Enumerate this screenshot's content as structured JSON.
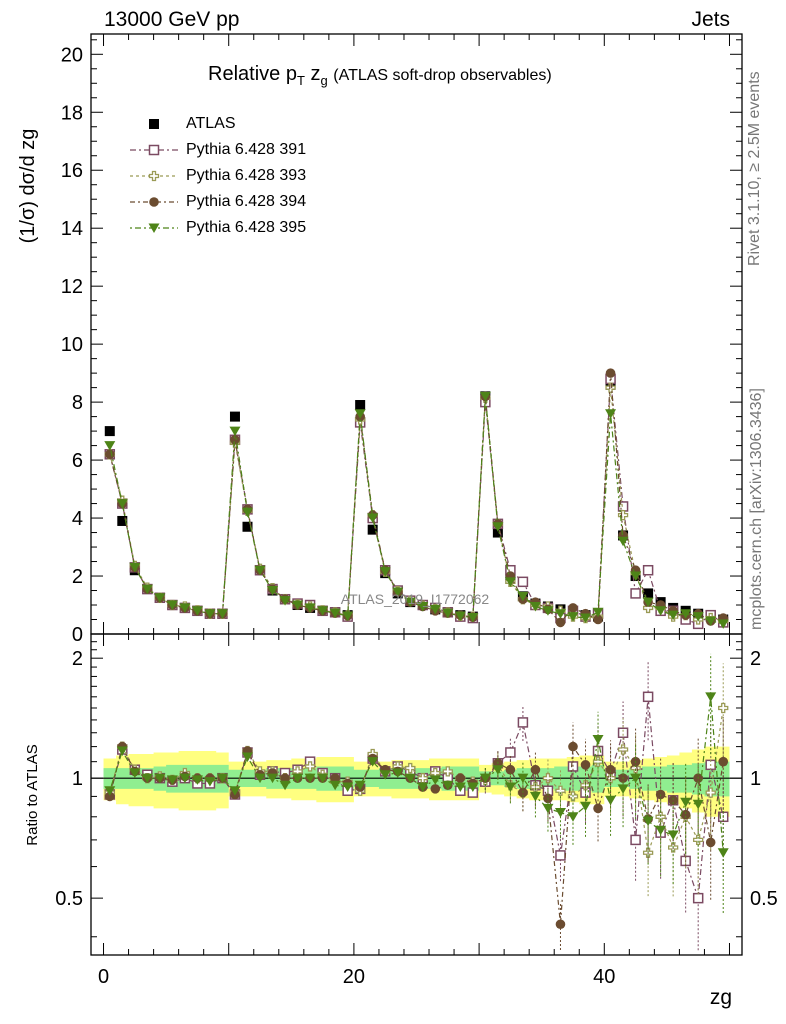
{
  "header": {
    "left": "13000 GeV pp",
    "right": "Jets"
  },
  "side_labels": {
    "events": "Rivet 3.1.10, ≥ 2.5M events",
    "source": "mcplots.cern.ch [arXiv:1306.3436]"
  },
  "watermark": "ATLAS_2019_I1772062",
  "chart_data": [
    {
      "type": "scatter",
      "title": "Relative pT zg (ATLAS soft-drop observables)",
      "ylabel": "(1/σ) dσ/d zg",
      "xlim": [
        -1,
        51
      ],
      "ylim": [
        0,
        20.7
      ],
      "yticks": [
        0,
        2,
        4,
        6,
        8,
        10,
        12,
        14,
        16,
        18,
        20
      ],
      "legend_position": "top-left",
      "x": [
        0.5,
        1.5,
        2.5,
        3.5,
        4.5,
        5.5,
        6.5,
        7.5,
        8.5,
        9.5,
        10.5,
        11.5,
        12.5,
        13.5,
        14.5,
        15.5,
        16.5,
        17.5,
        18.5,
        19.5,
        20.5,
        21.5,
        22.5,
        23.5,
        24.5,
        25.5,
        26.5,
        27.5,
        28.5,
        29.5,
        30.5,
        31.5,
        32.5,
        33.5,
        34.5,
        35.5,
        36.5,
        37.5,
        38.5,
        39.5,
        40.5,
        41.5,
        42.5,
        43.5,
        44.5,
        45.5,
        46.5,
        47.5,
        48.5,
        49.5
      ],
      "series": [
        {
          "name": "ATLAS",
          "color": "#000000",
          "marker": "square-filled",
          "values": [
            7.0,
            3.9,
            2.2,
            1.55,
            1.25,
            1.0,
            0.9,
            0.8,
            0.7,
            0.7,
            7.5,
            3.7,
            2.2,
            1.5,
            1.2,
            1.0,
            0.9,
            0.8,
            0.75,
            0.65,
            7.9,
            3.6,
            2.1,
            1.4,
            1.1,
            1.0,
            0.85,
            0.75,
            0.65,
            0.6,
            8.2,
            3.5,
            1.9,
            1.3,
            1.05,
            0.95,
            0.85,
            0.75,
            0.65,
            0.6,
            8.6,
            3.4,
            2.0,
            1.4,
            1.1,
            0.9,
            0.8,
            0.7,
            0.6,
            0.5
          ]
        },
        {
          "name": "Pythia 6.428 391",
          "color": "#7b4a62",
          "marker": "square-open",
          "values": [
            6.2,
            4.5,
            2.3,
            1.55,
            1.25,
            1.0,
            0.9,
            0.8,
            0.7,
            0.7,
            6.7,
            4.3,
            2.2,
            1.55,
            1.2,
            1.05,
            1.0,
            0.8,
            0.75,
            0.6,
            7.3,
            4.0,
            2.2,
            1.5,
            1.15,
            1.0,
            0.9,
            0.75,
            0.6,
            0.55,
            8.0,
            3.8,
            2.2,
            1.8,
            1.0,
            0.9,
            0.55,
            0.8,
            0.6,
            0.7,
            8.8,
            4.4,
            1.4,
            2.2,
            0.8,
            0.8,
            0.5,
            0.35,
            0.65,
            0.4
          ]
        },
        {
          "name": "Pythia 6.428 393",
          "color": "#9a9a55",
          "marker": "cross-open",
          "values": [
            6.2,
            4.6,
            2.35,
            1.6,
            1.25,
            1.0,
            0.95,
            0.82,
            0.7,
            0.7,
            6.6,
            4.25,
            2.25,
            1.58,
            1.2,
            1.02,
            0.95,
            0.82,
            0.74,
            0.64,
            7.4,
            4.1,
            2.15,
            1.48,
            1.14,
            0.98,
            0.86,
            0.74,
            0.63,
            0.6,
            8.15,
            3.8,
            1.8,
            1.2,
            1.0,
            0.95,
            0.8,
            0.6,
            0.55,
            0.6,
            8.5,
            4.1,
            2.1,
            0.9,
            0.9,
            0.6,
            0.65,
            0.5,
            0.55,
            0.45
          ]
        },
        {
          "name": "Pythia 6.428 394",
          "color": "#6b4c30",
          "marker": "circle-filled",
          "values": [
            6.2,
            4.5,
            2.3,
            1.55,
            1.25,
            1.0,
            0.9,
            0.8,
            0.7,
            0.7,
            6.7,
            4.3,
            2.2,
            1.55,
            1.2,
            1.0,
            0.9,
            0.8,
            0.72,
            0.63,
            7.5,
            4.1,
            2.2,
            1.45,
            1.1,
            0.95,
            0.8,
            0.72,
            0.65,
            0.58,
            8.2,
            3.8,
            2.0,
            1.2,
            1.1,
            0.85,
            0.4,
            0.9,
            0.7,
            0.5,
            9.0,
            3.4,
            2.2,
            1.1,
            1.0,
            0.8,
            0.65,
            0.7,
            0.45,
            0.55
          ]
        },
        {
          "name": "Pythia 6.428 395",
          "color": "#4e8418",
          "marker": "triangle-down-filled",
          "values": [
            6.5,
            4.5,
            2.3,
            1.55,
            1.25,
            1.0,
            0.9,
            0.8,
            0.7,
            0.7,
            7.0,
            4.2,
            2.2,
            1.5,
            1.15,
            1.0,
            0.9,
            0.8,
            0.72,
            0.62,
            7.6,
            4.0,
            2.15,
            1.45,
            1.1,
            0.95,
            0.85,
            0.72,
            0.62,
            0.57,
            8.2,
            3.7,
            1.8,
            1.3,
            0.95,
            0.8,
            0.7,
            0.6,
            0.55,
            0.75,
            7.6,
            3.2,
            2.0,
            1.1,
            0.8,
            0.65,
            0.7,
            0.6,
            0.45,
            0.35
          ]
        }
      ]
    },
    {
      "type": "scatter",
      "ylabel": "Ratio to ATLAS",
      "xlabel": "zg",
      "xlim": [
        -1,
        51
      ],
      "ylim": [
        0.36,
        2.3
      ],
      "yticks": [
        0.5,
        1,
        2
      ],
      "xticks": [
        0,
        20,
        40
      ],
      "reference": 1,
      "band_inner": [
        0.06,
        0.06,
        0.06,
        0.06,
        0.07,
        0.08,
        0.08,
        0.08,
        0.08,
        0.08,
        0.05,
        0.05,
        0.05,
        0.06,
        0.06,
        0.06,
        0.06,
        0.07,
        0.07,
        0.07,
        0.05,
        0.05,
        0.06,
        0.06,
        0.06,
        0.06,
        0.06,
        0.07,
        0.07,
        0.07,
        0.04,
        0.04,
        0.05,
        0.06,
        0.06,
        0.06,
        0.07,
        0.07,
        0.07,
        0.08,
        0.05,
        0.05,
        0.06,
        0.07,
        0.07,
        0.08,
        0.08,
        0.09,
        0.1,
        0.1
      ],
      "band_outer": [
        0.12,
        0.14,
        0.15,
        0.15,
        0.16,
        0.16,
        0.17,
        0.17,
        0.17,
        0.16,
        0.1,
        0.1,
        0.1,
        0.11,
        0.11,
        0.12,
        0.12,
        0.13,
        0.13,
        0.13,
        0.1,
        0.1,
        0.1,
        0.11,
        0.11,
        0.11,
        0.12,
        0.12,
        0.12,
        0.12,
        0.08,
        0.09,
        0.1,
        0.11,
        0.12,
        0.12,
        0.12,
        0.13,
        0.14,
        0.14,
        0.1,
        0.1,
        0.11,
        0.12,
        0.13,
        0.14,
        0.16,
        0.18,
        0.2,
        0.2
      ],
      "series": [
        {
          "name": "Pythia 6.428 391",
          "color": "#7b4a62",
          "marker": "square-open",
          "values": [
            0.91,
            1.18,
            1.05,
            1.02,
            1.0,
            0.98,
            1.0,
            0.97,
            0.97,
            1.0,
            0.91,
            1.16,
            1.02,
            1.04,
            1.03,
            1.05,
            1.1,
            1.03,
            1.0,
            0.93,
            0.94,
            1.12,
            1.04,
            1.07,
            1.04,
            1.0,
            1.04,
            1.0,
            0.93,
            0.92,
            0.98,
            1.09,
            1.16,
            1.38,
            0.96,
            0.93,
            0.64,
            1.07,
            0.92,
            1.17,
            1.03,
            1.3,
            0.7,
            1.6,
            0.73,
            0.88,
            0.62,
            0.5,
            1.08,
            0.8
          ]
        },
        {
          "name": "Pythia 6.428 393",
          "color": "#9a9a55",
          "marker": "cross-open",
          "values": [
            0.92,
            1.2,
            1.05,
            1.0,
            1.01,
            0.99,
            1.03,
            1.0,
            1.0,
            1.0,
            0.92,
            1.17,
            1.04,
            1.04,
            1.0,
            1.04,
            1.07,
            1.02,
            0.98,
            0.98,
            0.93,
            1.15,
            1.04,
            1.07,
            1.06,
            1.0,
            1.03,
            1.04,
            1.0,
            0.98,
            0.99,
            1.08,
            0.96,
            0.92,
            0.95,
            1.0,
            0.93,
            0.9,
            0.96,
            1.1,
            1.0,
            1.18,
            1.06,
            0.65,
            0.8,
            0.67,
            0.8,
            0.7,
            0.92,
            1.5
          ]
        },
        {
          "name": "Pythia 6.428 394",
          "color": "#6b4c30",
          "marker": "circle-filled",
          "values": [
            0.9,
            1.2,
            1.04,
            1.0,
            1.0,
            0.99,
            1.01,
            1.0,
            1.0,
            1.0,
            0.91,
            1.17,
            1.02,
            1.03,
            1.0,
            1.0,
            1.0,
            1.0,
            1.0,
            0.97,
            0.95,
            1.12,
            1.05,
            1.04,
            1.0,
            0.95,
            0.94,
            0.96,
            1.0,
            0.97,
            1.0,
            1.09,
            1.05,
            0.92,
            1.05,
            0.89,
            0.43,
            1.2,
            1.08,
            0.84,
            1.05,
            1.0,
            1.1,
            0.79,
            0.91,
            0.88,
            0.81,
            1.0,
            0.69,
            1.1
          ]
        },
        {
          "name": "Pythia 6.428 395",
          "color": "#4e8418",
          "marker": "triangle-down-filled",
          "values": [
            0.93,
            1.17,
            1.03,
            1.0,
            1.0,
            0.99,
            1.0,
            0.99,
            0.98,
            1.0,
            0.93,
            1.13,
            1.0,
            1.0,
            0.96,
            1.0,
            1.0,
            1.0,
            0.96,
            0.95,
            0.96,
            1.1,
            1.02,
            1.03,
            1.0,
            0.95,
            0.99,
            0.96,
            0.95,
            0.95,
            1.0,
            1.05,
            0.95,
            1.0,
            0.9,
            0.84,
            0.82,
            0.8,
            0.85,
            1.25,
            0.88,
            0.94,
            1.0,
            0.78,
            0.74,
            0.72,
            0.87,
            0.86,
            1.6,
            0.65
          ]
        }
      ]
    }
  ]
}
